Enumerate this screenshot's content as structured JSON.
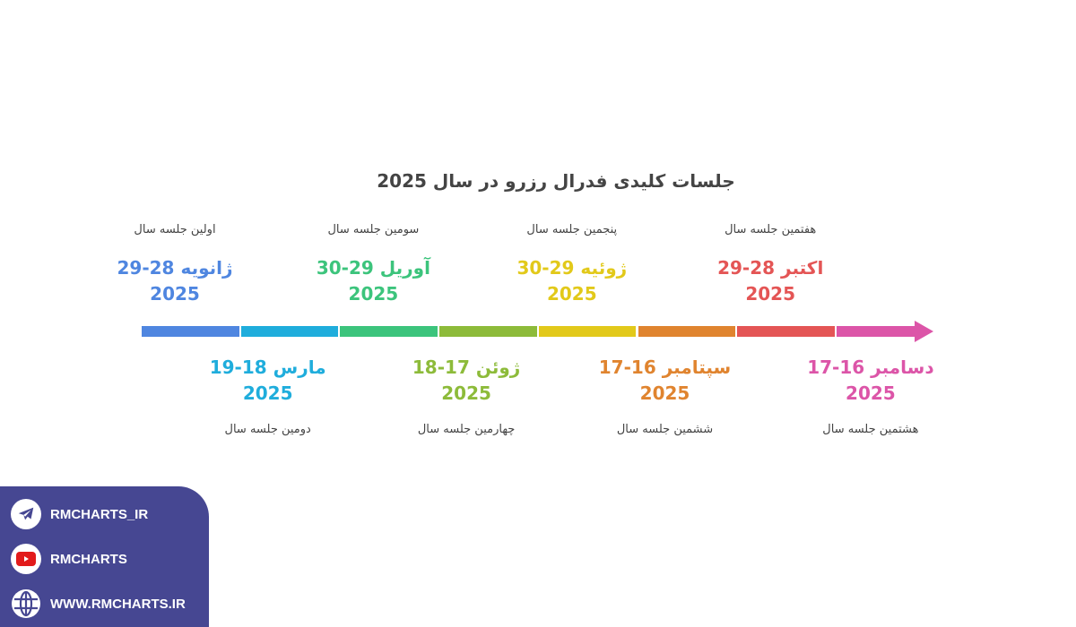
{
  "title": "جلسات کلیدی فدرال رزرو در سال 2025",
  "events": [
    {
      "label": "اولین جلسه سال",
      "date": "ژانویه 28-29",
      "year": "2025",
      "color": "#4F86E0",
      "position": "top"
    },
    {
      "label": "دومین جلسه سال",
      "date": "مارس 18-19",
      "year": "2025",
      "color": "#1FADDC",
      "position": "bottom"
    },
    {
      "label": "سومین جلسه سال",
      "date": "آوریل 29-30",
      "year": "2025",
      "color": "#3CC47C",
      "position": "top"
    },
    {
      "label": "چهارمین جلسه سال",
      "date": "ژوئن 17-18",
      "year": "2025",
      "color": "#8DBB3A",
      "position": "bottom"
    },
    {
      "label": "پنجمین جلسه سال",
      "date": "ژوئیه 29-30",
      "year": "2025",
      "color": "#E2C91A",
      "position": "top"
    },
    {
      "label": "ششمین جلسه سال",
      "date": "سپتامبر 16-17",
      "year": "2025",
      "color": "#E0842F",
      "position": "bottom"
    },
    {
      "label": "هفتمین جلسه سال",
      "date": "اکتبر 28-29",
      "year": "2025",
      "color": "#E45555",
      "position": "top"
    },
    {
      "label": "هشتمین جلسه سال",
      "date": "دسامبر 16-17",
      "year": "2025",
      "color": "#DC55A8",
      "position": "bottom"
    }
  ],
  "footer": {
    "background": "#464792",
    "items": [
      {
        "icon": "telegram-icon",
        "text": "RMCHARTS_IR"
      },
      {
        "icon": "youtube-icon",
        "text": "RMCHARTS"
      },
      {
        "icon": "globe-icon",
        "text": "WWW.RMCHARTS.IR"
      }
    ]
  }
}
